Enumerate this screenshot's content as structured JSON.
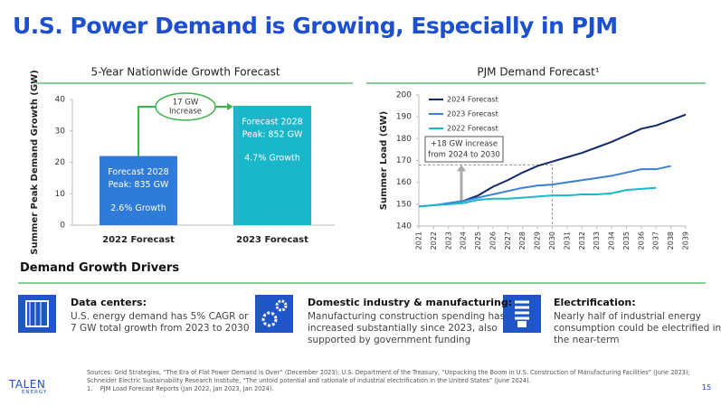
{
  "title": "U.S. Power Demand is Growing, Especially in PJM",
  "chart_data": [
    {
      "type": "bar",
      "title": "5-Year Nationwide Growth Forecast",
      "y_label": "Summer Peak Demand Growth (GW)",
      "categories": [
        "2022 Forecast",
        "2023 Forecast"
      ],
      "values": [
        22,
        38
      ],
      "colors": [
        "#2f7bd9",
        "#19b7c9"
      ],
      "bar_labels": [
        [
          "Forecast 2028",
          "Peak: 835 GW",
          "2.6% Growth"
        ],
        [
          "Forecast 2028",
          "Peak: 852 GW",
          "4.7% Growth"
        ]
      ],
      "annotation": [
        "17 GW",
        "Increase"
      ],
      "annotation_color": "#3cb54a",
      "ylim": [
        0,
        40
      ],
      "yticks": [
        0,
        10,
        20,
        30,
        40
      ],
      "grid": false
    },
    {
      "type": "line",
      "title": "PJM Demand Forecast¹",
      "y_label": "Summer Load (GW)",
      "x": [
        2021,
        2022,
        2023,
        2024,
        2025,
        2026,
        2027,
        2028,
        2029,
        2030,
        2031,
        2032,
        2033,
        2034,
        2035,
        2036,
        2037,
        2038,
        2039
      ],
      "series": [
        {
          "name": "2024 Forecast",
          "color": "#0f2a6e",
          "values": [
            null,
            null,
            null,
            151.5,
            154,
            158,
            161,
            164.5,
            167.5,
            169.5,
            171.5,
            173.5,
            176,
            178.5,
            181.5,
            184.5,
            186,
            188.5,
            191
          ]
        },
        {
          "name": "2023 Forecast",
          "color": "#3a7fd8",
          "values": [
            149,
            149.5,
            150.5,
            151.5,
            153,
            154.5,
            156,
            157.5,
            158.5,
            159,
            160,
            161,
            162,
            163,
            164.5,
            166,
            166,
            167.5,
            null
          ]
        },
        {
          "name": "2022 Forecast",
          "color": "#1bb8c8",
          "values": [
            149,
            149.5,
            150,
            150.5,
            152,
            152.5,
            152.5,
            153,
            153.5,
            154,
            154,
            154.5,
            154.5,
            155,
            156.5,
            157,
            157.5,
            null,
            null
          ]
        }
      ],
      "annotation": [
        "+18 GW increase",
        "from 2024 to 2030"
      ],
      "xlim": [
        2021,
        2039
      ],
      "xticks": [
        2021,
        2022,
        2023,
        2024,
        2025,
        2026,
        2027,
        2028,
        2029,
        2030,
        2031,
        2032,
        2033,
        2034,
        2035,
        2036,
        2037,
        2038,
        2039
      ],
      "ylim": [
        140,
        200
      ],
      "yticks": [
        140,
        150,
        160,
        170,
        180,
        190,
        200
      ],
      "grid": false,
      "legend": "top-left"
    }
  ],
  "drivers": {
    "heading": "Demand Growth Drivers",
    "items": [
      {
        "title": "Data centers:",
        "lines": [
          "U.S. energy demand has 5% CAGR or",
          "7 GW total growth from 2023 to 2030"
        ]
      },
      {
        "title": "Domestic industry & manufacturing:",
        "lines": [
          "Manufacturing construction spending has",
          "increased substantially since 2023, also",
          "supported by government funding"
        ]
      },
      {
        "title": "Electrification:",
        "lines": [
          "Nearly half of industrial energy",
          "consumption could be electrified in",
          "the near-term"
        ]
      }
    ]
  },
  "sources": [
    "Sources: Grid Strategies, “The Era of Flat Power Demand is Over” (December 2023); U.S. Department of the Treasury, “Unpacking the Boom in U.S. Construction of Manufacturing Facilities” (June 2023);",
    "Schneider Electric Sustainability Research Institute, “The untold potential and rationale of industrial electrification in the United States” (June 2024)."
  ],
  "footnote_marker": "1.",
  "footnote": "PJM Load Forecast Reports (Jan 2022, Jan 2023, Jan 2024).",
  "logo": {
    "name": "TALEN",
    "sub": "ENERGY"
  },
  "page_number": "15"
}
